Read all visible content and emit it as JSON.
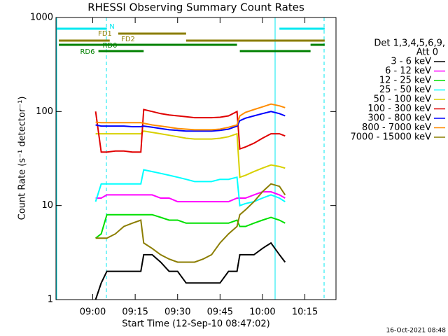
{
  "chart_data": {
    "type": "line",
    "title": "RHESSI Observing Summary Count Rates",
    "x_label": "Start Time (12-Sep-10 08:47:02)",
    "y_label": "Count Rate (s⁻¹ detector⁻¹)",
    "legend_title": [
      "Det 1,3,4,5,6,9,",
      "Att 0"
    ],
    "footer": "16-Oct-2021 08:48",
    "log_y": true,
    "xlim": [
      "08:47",
      "10:26"
    ],
    "xticks": [
      "09:00",
      "09:15",
      "09:30",
      "09:45",
      "10:00",
      "10:15"
    ],
    "ylim": [
      1,
      1000
    ],
    "yticks": [
      1,
      10,
      100,
      1000
    ],
    "x": [
      "09:01",
      "09:03",
      "09:05",
      "09:08",
      "09:11",
      "09:14",
      "09:17",
      "09:18",
      "09:21",
      "09:24",
      "09:27",
      "09:30",
      "09:33",
      "09:36",
      "09:39",
      "09:42",
      "09:45",
      "09:48",
      "09:51",
      "09:52",
      "09:54",
      "09:57",
      "10:00",
      "10:03",
      "10:06",
      "10:08"
    ],
    "series": [
      {
        "name": "3 - 6 keV",
        "color": "#000000",
        "values": [
          1,
          1.5,
          2,
          2,
          2,
          2,
          2,
          3,
          3,
          2.5,
          2,
          2,
          1.5,
          1.5,
          1.5,
          1.5,
          1.5,
          2,
          2,
          3,
          3,
          3,
          3.5,
          4,
          3,
          2.5
        ]
      },
      {
        "name": "6 - 12 keV",
        "color": "#ff00ff",
        "values": [
          12,
          12,
          13,
          13,
          13,
          13,
          13,
          13,
          13,
          12,
          12,
          11,
          11,
          11,
          11,
          11,
          11,
          11,
          12,
          12,
          12,
          13,
          14,
          14,
          13,
          12
        ]
      },
      {
        "name": "12 - 25 keV",
        "color": "#00e000",
        "values": [
          4.5,
          5,
          8,
          8,
          8,
          8,
          8,
          8,
          8,
          7.5,
          7,
          7,
          6.5,
          6.5,
          6.5,
          6.5,
          6.5,
          6.5,
          7,
          6,
          6,
          6.5,
          7,
          7.5,
          7,
          6.5
        ]
      },
      {
        "name": "25 - 50 keV",
        "color": "#00ffff",
        "values": [
          11,
          17,
          17,
          17,
          17,
          17,
          17,
          24,
          23,
          22,
          21,
          20,
          19,
          18,
          18,
          18,
          19,
          19,
          20,
          10,
          10.5,
          11,
          12,
          13,
          12,
          11
        ]
      },
      {
        "name": "50 - 100 keV",
        "color": "#d8d000",
        "values": [
          58,
          58,
          58,
          58,
          58,
          58,
          58,
          62,
          60,
          58,
          56,
          54,
          52,
          51,
          51,
          51,
          52,
          54,
          58,
          20,
          21,
          23,
          25,
          27,
          26,
          25
        ]
      },
      {
        "name": "100 - 300 keV",
        "color": "#e00000",
        "values": [
          100,
          37,
          37,
          38,
          38,
          37,
          37,
          105,
          100,
          95,
          92,
          90,
          88,
          86,
          86,
          86,
          87,
          90,
          100,
          40,
          42,
          46,
          52,
          58,
          58,
          55
        ]
      },
      {
        "name": "300 - 800 keV",
        "color": "#0000ff",
        "values": [
          72,
          70,
          70,
          70,
          70,
          69,
          69,
          70,
          68,
          66,
          64,
          63,
          62,
          62,
          62,
          62,
          63,
          65,
          70,
          80,
          85,
          90,
          95,
          100,
          95,
          90
        ]
      },
      {
        "name": "800 - 7000 keV",
        "color": "#ff8c00",
        "values": [
          77,
          76,
          76,
          76,
          76,
          76,
          76,
          75,
          72,
          70,
          68,
          66,
          65,
          64,
          64,
          64,
          65,
          68,
          72,
          90,
          98,
          105,
          112,
          120,
          115,
          110
        ]
      },
      {
        "name": "7000 - 15000 keV",
        "color": "#8b7d00",
        "values": [
          4.5,
          4.5,
          4.5,
          5,
          6,
          6.5,
          7,
          4,
          3.5,
          3,
          2.7,
          2.5,
          2.5,
          2.5,
          2.7,
          3,
          4,
          5,
          6,
          8,
          9,
          11,
          14,
          17,
          16,
          13
        ]
      }
    ],
    "flags": [
      {
        "name": "N",
        "color": "#00e8f0",
        "intervals": [
          [
            "08:47",
            "09:05"
          ],
          [
            "10:06",
            "10:22"
          ]
        ]
      },
      {
        "name": "FD1",
        "color": "#8b7d00",
        "intervals": [
          [
            "09:09",
            "09:33"
          ]
        ]
      },
      {
        "name": "FD2",
        "color": "#8b7d00",
        "intervals": [
          [
            "08:48",
            "09:06"
          ],
          [
            "09:33",
            "10:22"
          ]
        ]
      },
      {
        "name": "RD0",
        "color": "#008000",
        "intervals": [
          [
            "08:48",
            "09:51"
          ],
          [
            "10:17",
            "10:22"
          ]
        ]
      },
      {
        "name": "RD6",
        "color": "#008000",
        "intervals": [
          [
            "09:02",
            "09:18"
          ],
          [
            "09:52",
            "10:17"
          ]
        ]
      }
    ]
  }
}
